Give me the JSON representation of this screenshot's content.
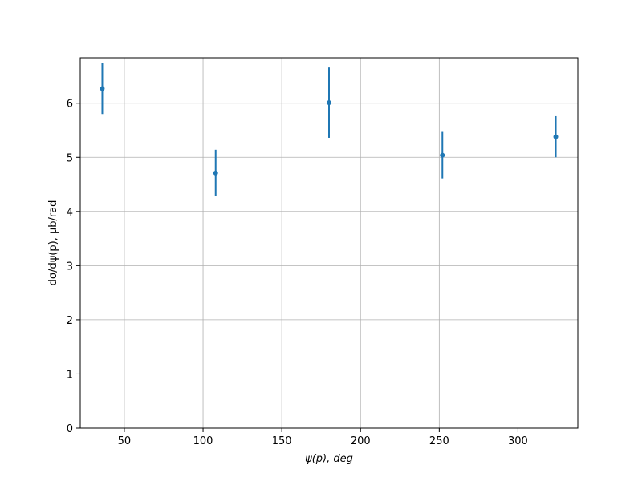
{
  "chart_data": {
    "type": "scatter",
    "xlabel": "ψ(p), deg",
    "ylabel": "dσ/dψ(p), μb/rad",
    "x": [
      36,
      108,
      180,
      252,
      324
    ],
    "series": [
      {
        "color": "#1f77b4",
        "values": [
          6.27,
          4.71,
          6.01,
          5.04,
          5.38
        ],
        "errors": [
          0.47,
          0.43,
          0.65,
          0.43,
          0.38
        ]
      }
    ],
    "xlim": [
      22,
      338
    ],
    "ylim": [
      0,
      6.84
    ],
    "xticks": [
      50,
      100,
      150,
      200,
      250,
      300
    ],
    "yticks": [
      0,
      1,
      2,
      3,
      4,
      5,
      6
    ],
    "grid": true
  }
}
